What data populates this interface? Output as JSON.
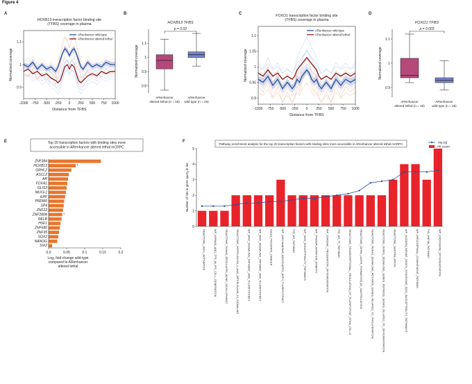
{
  "figure_title": "Figure 4",
  "chart_data": [
    {
      "panel": "A",
      "type": "line",
      "title": [
        "HOXB13 transcription factor binding site",
        "(TFBS) coverage in plasma"
      ],
      "title_italic_word": "HOXB13",
      "xlabel": "Distance from TFBS",
      "ylabel": "Normalized coverage",
      "xlim": [
        -1000,
        1000
      ],
      "ylim": [
        0.85,
        1.15
      ],
      "xticks": [
        -1000,
        -750,
        -500,
        -250,
        0,
        250,
        500,
        750,
        1000
      ],
      "yticks": [
        0.9,
        1.0,
        1.1
      ],
      "legend_position": "top-right",
      "series": [
        {
          "name": "ARenhancer wild-type",
          "color": "#2a4fa0",
          "x": [
            -1000,
            -900,
            -800,
            -700,
            -600,
            -500,
            -400,
            -300,
            -250,
            -200,
            -150,
            -100,
            -50,
            0,
            50,
            100,
            150,
            200,
            250,
            300,
            400,
            500,
            600,
            700,
            800,
            900,
            1000
          ],
          "y": [
            1.0,
            0.99,
            1.01,
            0.98,
            1.0,
            0.98,
            0.99,
            0.97,
            0.99,
            1.02,
            1.05,
            1.07,
            1.06,
            1.04,
            1.06,
            1.07,
            1.05,
            1.02,
            0.99,
            0.98,
            1.01,
            0.99,
            1.0,
            0.99,
            1.01,
            1.0,
            1.0
          ]
        },
        {
          "name": "ARenhancer altered lethal",
          "color": "#8b1a1a",
          "x": [
            -1000,
            -900,
            -800,
            -700,
            -600,
            -500,
            -400,
            -300,
            -250,
            -200,
            -150,
            -100,
            -50,
            0,
            50,
            100,
            150,
            200,
            250,
            300,
            400,
            500,
            600,
            700,
            800,
            900,
            1000
          ],
          "y": [
            0.97,
            0.98,
            0.96,
            0.97,
            0.95,
            0.96,
            0.94,
            0.93,
            0.92,
            0.93,
            0.96,
            0.99,
            1.0,
            0.98,
            1.0,
            0.99,
            0.96,
            0.93,
            0.92,
            0.93,
            0.95,
            0.96,
            0.95,
            0.97,
            0.96,
            0.97,
            0.97
          ]
        }
      ]
    },
    {
      "panel": "B",
      "type": "box",
      "title": "HOXB13 TFBS",
      "ylabel": "Normalized coverage",
      "ylim": [
        0.75,
        1.2
      ],
      "yticks": [
        0.8,
        0.9,
        1.0,
        1.1
      ],
      "pvalue": "p = 0.02",
      "groups": [
        {
          "label": [
            "ARenhancer",
            "altered lethal (n = 18)"
          ],
          "color": "#b5497a",
          "min": 0.77,
          "q1": 0.92,
          "median": 0.98,
          "q3": 1.02,
          "max": 1.13
        },
        {
          "label": [
            "ARenhancer",
            "wild-type (n = 25)"
          ],
          "color": "#7a84cc",
          "min": 0.94,
          "q1": 1.0,
          "median": 1.02,
          "q3": 1.04,
          "max": 1.17
        }
      ]
    },
    {
      "panel": "C",
      "type": "line",
      "title": [
        "FOXO1 transcription factor binding site",
        "(TFBS) coverage in plasma"
      ],
      "title_italic_word": "FOXO1",
      "xlabel": "Distance from TFBS",
      "ylabel": "Normalized coverage",
      "xlim": [
        -1000,
        1000
      ],
      "ylim": [
        0.88,
        1.13
      ],
      "xticks": [
        -1000,
        -750,
        -500,
        -250,
        0,
        250,
        500,
        750,
        1000
      ],
      "yticks": [
        0.9,
        0.95,
        1.0,
        1.05,
        1.1
      ],
      "legend_position": "top-right",
      "series": [
        {
          "name": "ARenhancer wild-type",
          "color": "#2a4fa0",
          "x": [
            -1000,
            -900,
            -800,
            -700,
            -600,
            -500,
            -400,
            -300,
            -250,
            -200,
            -150,
            -100,
            -50,
            0,
            50,
            100,
            150,
            200,
            250,
            300,
            400,
            500,
            600,
            700,
            800,
            900,
            1000
          ],
          "y": [
            0.96,
            0.95,
            0.97,
            0.94,
            0.96,
            0.93,
            0.95,
            0.93,
            0.94,
            0.96,
            0.95,
            0.97,
            0.98,
            0.99,
            0.98,
            0.96,
            0.95,
            0.96,
            0.94,
            0.93,
            0.95,
            0.93,
            0.96,
            0.94,
            0.96,
            0.95,
            0.96
          ]
        },
        {
          "name": "ARenhancer altered lethal",
          "color": "#8b1a1a",
          "x": [
            -1000,
            -900,
            -800,
            -700,
            -600,
            -500,
            -400,
            -300,
            -250,
            -200,
            -150,
            -100,
            -50,
            0,
            50,
            100,
            150,
            200,
            250,
            300,
            400,
            500,
            600,
            700,
            800,
            900,
            1000
          ],
          "y": [
            0.98,
            0.97,
            0.99,
            0.97,
            0.98,
            0.96,
            0.97,
            0.96,
            0.97,
            0.99,
            1.0,
            1.01,
            1.02,
            1.03,
            1.02,
            1.01,
            1.0,
            0.99,
            0.97,
            0.96,
            0.97,
            0.96,
            0.98,
            0.97,
            0.98,
            0.97,
            0.98
          ]
        }
      ]
    },
    {
      "panel": "D",
      "type": "box",
      "title": "FOXO1 TFBS",
      "ylabel": "Normalized coverage",
      "ylim": [
        0.86,
        1.14
      ],
      "yticks": [
        0.9,
        1.0,
        1.1
      ],
      "pvalue": "p = 0.003",
      "groups": [
        {
          "label": [
            "ARenhancer",
            "altered lethal (n = 18)"
          ],
          "color": "#b5497a",
          "min": 0.92,
          "q1": 0.94,
          "median": 0.95,
          "q3": 1.02,
          "max": 1.12
        },
        {
          "label": [
            "ARenhancer",
            "wild-type (n = 25)"
          ],
          "color": "#7a84cc",
          "min": 0.89,
          "q1": 0.92,
          "median": 0.93,
          "q3": 0.94,
          "max": 1.01
        }
      ]
    },
    {
      "panel": "E",
      "type": "bar",
      "orientation": "horizontal",
      "title": [
        "Top 20 transcription factors with binding sites more",
        "accessible in ARenhancer altered lethal mCRPC"
      ],
      "xlabel": [
        "Log₂ fold-change wild-type",
        "compared to ARenhancer",
        "altered lethal"
      ],
      "xlim": [
        0,
        0.2
      ],
      "xticks": [
        0.0,
        0.05,
        0.1,
        0.15,
        0.2
      ],
      "color": "#e8762d",
      "categories": [
        "ZNF384",
        "HOXB13",
        "GRHL2",
        "ASCL2",
        "AR",
        "FOXA1",
        "GLIS3",
        "NKX3-1",
        "ERF",
        "PRDM6",
        "SP4",
        "ZNF22",
        "ZNF280A",
        "RELB",
        "HSF1",
        "ZNF680",
        "ZNF35",
        "SOX2",
        "NANOG",
        "SIX2"
      ],
      "values": [
        0.145,
        0.075,
        0.063,
        0.056,
        0.054,
        0.052,
        0.05,
        0.048,
        0.046,
        0.043,
        0.042,
        0.04,
        0.038,
        0.036,
        0.033,
        0.031,
        0.029,
        0.027,
        0.024,
        0.01
      ],
      "starred": [
        "HOXB13",
        "ZNF280A"
      ]
    },
    {
      "panel": "F",
      "type": "bar",
      "title": "Pathway enrichment analysis for the top 20 transcription factors with binding sites more accessible in ARenhancer altered lethal mCRPC",
      "ylabel": "Number of hits in gene query in list",
      "ylim": [
        0,
        5
      ],
      "yticks": [
        0,
        1,
        2,
        3,
        4,
        5
      ],
      "bar_color": "#e8232a",
      "line_color": "#2a4fa0",
      "legend": [
        "-log (q)",
        "Hit count"
      ],
      "legend_position": "top-right",
      "categories": [
        "REACTOME_HSF1_ACTIVATION",
        "WP_MIRNAS_AND_TFS_IN_IPS_CELL_GENERATION",
        "REACTOME_RUNX2_REGULATES_BONE_DEVELOPMENT",
        "REACTOME_INTERLEUKIN_4_AND_INTERLEUKIN_13_SIGNALING",
        "WP_WNT_SIGNALING_PATHWAY_AND_PLURIPOTENCY",
        "WP_WNT_SIGNALING_PATHWAY_AND_PLURIPOTENCY",
        "KEGG_PROSTATE_CANCER",
        "WP_MECHANISMS_ASSOCIATED_WITH_PLURIPOTENCY",
        "PID_AR_PATHWAY",
        "WP_SIDS_SUSCEPTIBILITY_PATHWAYS",
        "WP_PREIMPLANTATION_EMBRYO",
        "WP_CARDIAC_PROGENITOR_DIFFERENTIATION",
        "PID_AR_TF_PATHWAY",
        "REACTOME_TRANSCRIPTIONAL_REGULATION_OF_PLURIPOTENT_STEM_CELLS",
        "REACTOME_GERM_LAYER_FORMATION_AT_GASTRULATION",
        "REACTOME_RUNX1_SIGNALING_ACTIVATE_GENES_RELATED_TO_PROLIFERATION",
        "REACTOME_RUNX1_SIGNALING_GENES_REPRESS_GENES_RELATED_TO_DIFFERENTIATION",
        "REACTOME_GASTRULATION",
        "WP_SUDDEN_INFANT_DEATH_SYNDROME_SIDS_SUSCEPTIBILITY_PATHWAYS",
        "WP_MESODERMAL_COMMITMENT_PATHWAY",
        "PID_HNF3A_PATHWAY",
        "WP_ENDODERM_DIFFERENTIATION"
      ],
      "values": [
        1,
        1,
        1,
        2,
        2,
        2,
        2,
        3,
        2,
        2,
        2,
        2,
        2,
        2,
        2,
        2,
        2,
        3,
        4,
        4,
        3,
        5
      ],
      "neglogq": [
        1.3,
        1.3,
        1.3,
        1.4,
        1.5,
        1.5,
        1.6,
        1.6,
        1.7,
        1.8,
        1.8,
        1.9,
        2.0,
        2.1,
        2.3,
        2.8,
        2.9,
        3.0,
        3.5,
        3.5,
        3.5,
        3.6
      ]
    }
  ]
}
